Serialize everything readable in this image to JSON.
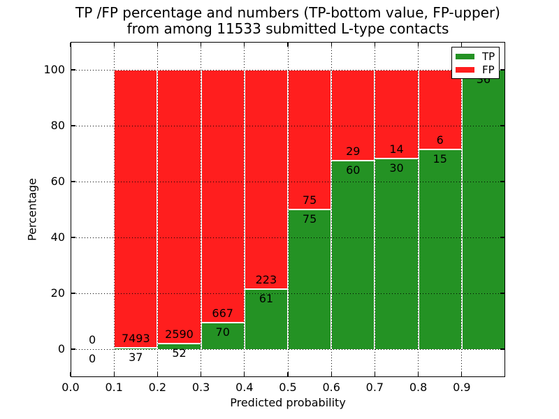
{
  "title": {
    "line1": "TP /FP percentage and numbers (TP-bottom value, FP-upper)",
    "line2": "from among 11533 submitted L-type contacts"
  },
  "axes": {
    "xlabel": "Predicted probability",
    "ylabel": "Percentage"
  },
  "legend": {
    "items": [
      {
        "label": "TP",
        "color": "#249224"
      },
      {
        "label": "FP",
        "color": "#FF1E1E"
      }
    ]
  },
  "chart_data": {
    "type": "bar",
    "stacked": true,
    "units": "percent of bin total",
    "title": "TP /FP percentage and numbers (TP-bottom value, FP-upper) from among 11533 submitted L-type contacts",
    "total_contacts": 11533,
    "xlabel": "Predicted probability",
    "ylabel": "Percentage",
    "xlim": [
      0.0,
      1.0
    ],
    "ylim": [
      -10,
      110
    ],
    "grid": true,
    "legend_position": "upper right",
    "x_ticks": [
      0.0,
      0.1,
      0.2,
      0.3,
      0.4,
      0.5,
      0.6,
      0.7,
      0.8,
      0.9
    ],
    "x_tick_labels": [
      "0.0",
      "0.1",
      "0.2",
      "0.3",
      "0.4",
      "0.5",
      "0.6",
      "0.7",
      "0.8",
      "0.9"
    ],
    "y_ticks": [
      0,
      20,
      40,
      60,
      80,
      100
    ],
    "y_tick_labels": [
      "0",
      "20",
      "40",
      "60",
      "80",
      "100"
    ],
    "bin_edges": [
      0.0,
      0.1,
      0.2,
      0.3,
      0.4,
      0.5,
      0.6,
      0.7,
      0.8,
      0.9,
      1.0
    ],
    "colors": {
      "tp": "#249224",
      "fp": "#FF1E1E"
    },
    "series": [
      {
        "name": "TP",
        "counts": [
          0,
          37,
          52,
          70,
          61,
          75,
          60,
          30,
          15,
          36
        ]
      },
      {
        "name": "FP",
        "counts": [
          0,
          7493,
          2590,
          667,
          223,
          75,
          29,
          14,
          6,
          null
        ]
      }
    ],
    "bins": [
      {
        "range": "0.0-0.1",
        "has_bar": false,
        "tp_pct": 0,
        "fp_pct": 0,
        "tp_label": "0",
        "fp_label": "0"
      },
      {
        "range": "0.1-0.2",
        "has_bar": true,
        "tp_pct": 0.49,
        "fp_pct": 99.51,
        "tp_label": "37",
        "fp_label": "7493"
      },
      {
        "range": "0.2-0.3",
        "has_bar": true,
        "tp_pct": 1.97,
        "fp_pct": 98.03,
        "tp_label": "52",
        "fp_label": "2590"
      },
      {
        "range": "0.3-0.4",
        "has_bar": true,
        "tp_pct": 9.5,
        "fp_pct": 90.5,
        "tp_label": "70",
        "fp_label": "667"
      },
      {
        "range": "0.4-0.5",
        "has_bar": true,
        "tp_pct": 21.48,
        "fp_pct": 78.52,
        "tp_label": "61",
        "fp_label": "223"
      },
      {
        "range": "0.5-0.6",
        "has_bar": true,
        "tp_pct": 50.0,
        "fp_pct": 50.0,
        "tp_label": "75",
        "fp_label": "75"
      },
      {
        "range": "0.6-0.7",
        "has_bar": true,
        "tp_pct": 67.42,
        "fp_pct": 32.58,
        "tp_label": "60",
        "fp_label": "29"
      },
      {
        "range": "0.7-0.8",
        "has_bar": true,
        "tp_pct": 68.18,
        "fp_pct": 31.82,
        "tp_label": "30",
        "fp_label": "14"
      },
      {
        "range": "0.8-0.9",
        "has_bar": true,
        "tp_pct": 71.43,
        "fp_pct": 28.57,
        "tp_label": "15",
        "fp_label": "6"
      },
      {
        "range": "0.9-1.0",
        "has_bar": true,
        "tp_pct": 100.0,
        "fp_pct": 0,
        "tp_label": "36",
        "fp_label": null
      }
    ]
  }
}
